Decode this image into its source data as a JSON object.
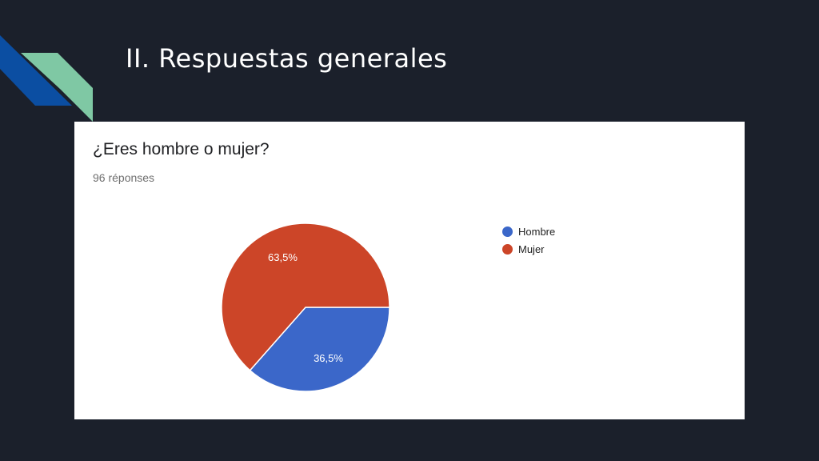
{
  "slide": {
    "title": "II. Respuestas generales"
  },
  "card": {
    "question": "¿Eres hombre o mujer?",
    "responses": "96 réponses"
  },
  "colors": {
    "background": "#1b202b",
    "accent_blue": "#0b4ea2",
    "accent_green": "#7fc8a4",
    "hombre": "#3b67c9",
    "mujer": "#cc4528"
  },
  "chart_data": {
    "type": "pie",
    "categories": [
      "Hombre",
      "Mujer"
    ],
    "values": [
      36.5,
      63.5
    ],
    "labels": [
      "36,5%",
      "63,5%"
    ],
    "colors": [
      "#3b67c9",
      "#cc4528"
    ],
    "legend_position": "right"
  }
}
